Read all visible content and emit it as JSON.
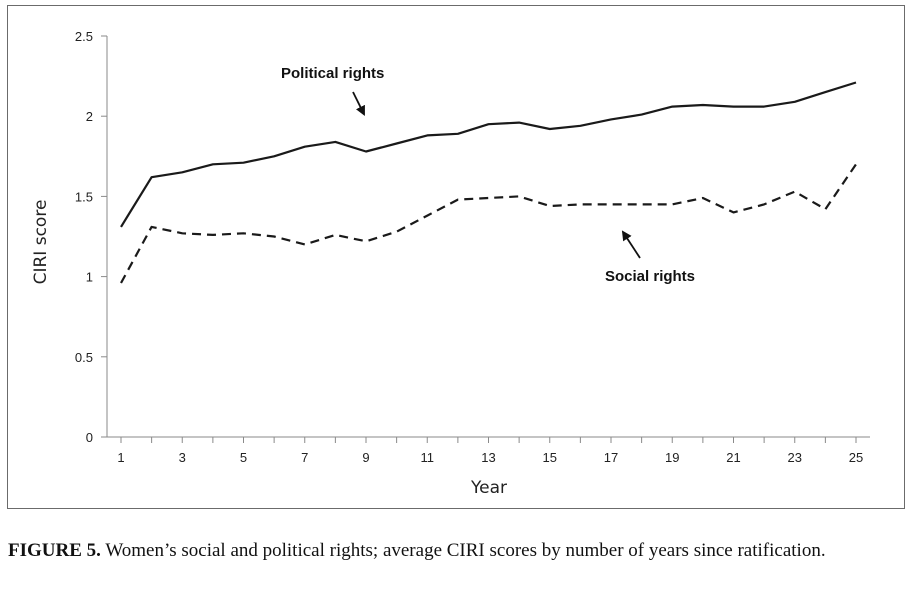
{
  "chart_data": {
    "type": "line",
    "title": "",
    "xlabel": "Year",
    "ylabel": "CIRI score",
    "x": [
      1,
      2,
      3,
      4,
      5,
      6,
      7,
      8,
      9,
      10,
      11,
      12,
      13,
      14,
      15,
      16,
      17,
      18,
      19,
      20,
      21,
      22,
      23,
      24,
      25
    ],
    "xlim": [
      1,
      25
    ],
    "x_tick_labels": [
      "1",
      "3",
      "5",
      "7",
      "9",
      "11",
      "13",
      "15",
      "17",
      "19",
      "21",
      "23",
      "25"
    ],
    "ylim": [
      0,
      2.5
    ],
    "y_ticks": [
      0,
      0.5,
      1,
      1.5,
      2,
      2.5
    ],
    "y_tick_labels": [
      "0",
      "0.5",
      "1",
      "1.5",
      "2",
      "2.5"
    ],
    "grid": false,
    "legend": "none",
    "series": [
      {
        "name": "Political rights",
        "style": "solid",
        "color": "#1a1a1a",
        "values": [
          1.31,
          1.62,
          1.65,
          1.7,
          1.71,
          1.75,
          1.81,
          1.84,
          1.78,
          1.83,
          1.88,
          1.89,
          1.95,
          1.96,
          1.92,
          1.94,
          1.98,
          2.01,
          2.06,
          2.07,
          2.06,
          2.06,
          2.09,
          2.15,
          2.21
        ]
      },
      {
        "name": "Social rights",
        "style": "dashed",
        "color": "#1a1a1a",
        "values": [
          0.96,
          1.31,
          1.27,
          1.26,
          1.27,
          1.25,
          1.2,
          1.26,
          1.22,
          1.28,
          1.38,
          1.48,
          1.49,
          1.5,
          1.44,
          1.45,
          1.45,
          1.45,
          1.45,
          1.49,
          1.4,
          1.45,
          1.53,
          1.42,
          1.7
        ]
      }
    ],
    "annotations": [
      {
        "text": "Political rights",
        "series": "Political rights",
        "arrow_to_x": 9,
        "arrow_to_y": 2.0
      },
      {
        "text": "Social rights",
        "series": "Social rights",
        "arrow_to_x": 17.5,
        "arrow_to_y": 1.31
      }
    ]
  },
  "caption": {
    "label": "FIGURE 5.",
    "text": "Women’s social and political rights; average CIRI scores by number of years since ratification."
  }
}
